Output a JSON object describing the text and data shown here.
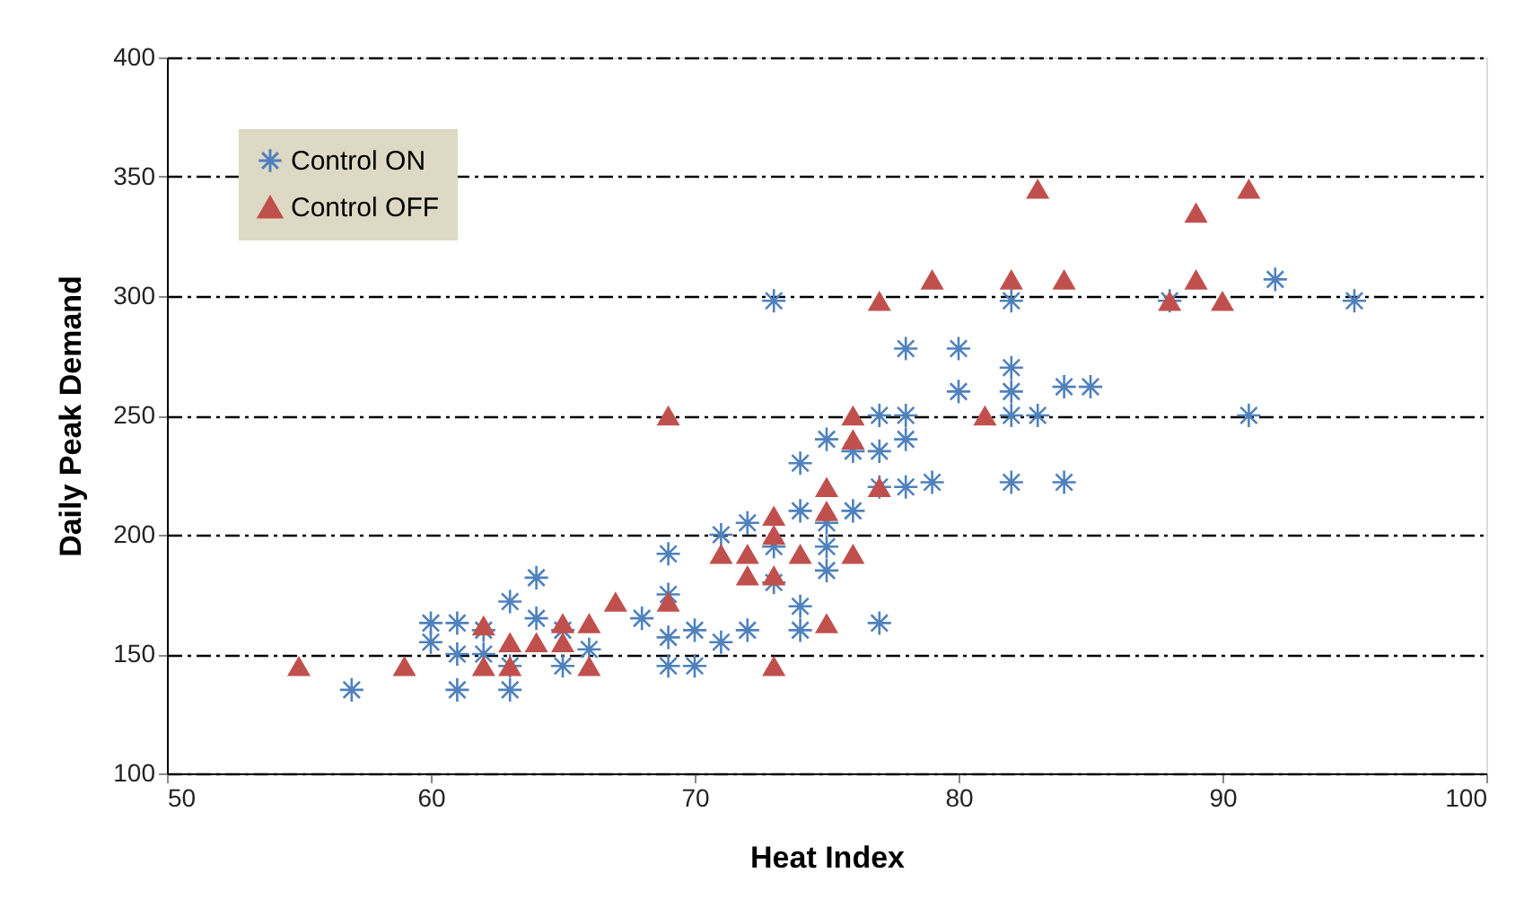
{
  "chart_data": {
    "type": "scatter",
    "xlabel": "Heat Index",
    "ylabel": "Daily Peak Demand",
    "xlim": [
      50,
      100
    ],
    "xticks": [
      50,
      60,
      70,
      80,
      90,
      100
    ],
    "ylim": [
      100,
      400
    ],
    "yticks": [
      100,
      150,
      200,
      250,
      300,
      350,
      400
    ],
    "grid": "y",
    "legend": "top left",
    "series": [
      {
        "name": "Control ON",
        "color": "#4f81bd",
        "marker": "cross",
        "x": [
          57,
          60,
          60,
          61,
          61,
          61,
          62,
          62,
          63,
          63,
          63,
          64,
          64,
          65,
          65,
          66,
          68,
          69,
          69,
          69,
          69,
          70,
          70,
          71,
          71,
          72,
          72,
          73,
          73,
          73,
          74,
          74,
          74,
          74,
          75,
          75,
          75,
          75,
          76,
          76,
          77,
          77,
          77,
          77,
          78,
          78,
          78,
          78,
          79,
          80,
          80,
          82,
          82,
          82,
          82,
          82,
          83,
          84,
          84,
          85,
          88,
          91,
          92,
          95
        ],
        "values": [
          135,
          163,
          155,
          163,
          150,
          135,
          160,
          150,
          172,
          145,
          135,
          182,
          165,
          145,
          160,
          152,
          165,
          192,
          175,
          157,
          145,
          160,
          145,
          200,
          155,
          205,
          160,
          298,
          195,
          180,
          230,
          210,
          170,
          160,
          240,
          205,
          195,
          185,
          235,
          210,
          250,
          235,
          220,
          163,
          278,
          250,
          240,
          220,
          222,
          278,
          260,
          270,
          260,
          250,
          298,
          222,
          250,
          262,
          222,
          262,
          298,
          250,
          307,
          298
        ]
      },
      {
        "name": "Control OFF",
        "color": "#c0504d",
        "marker": "triangle",
        "x": [
          55,
          59,
          62,
          62,
          63,
          63,
          64,
          65,
          65,
          66,
          66,
          67,
          69,
          69,
          71,
          72,
          72,
          73,
          73,
          73,
          73,
          74,
          75,
          75,
          75,
          76,
          76,
          76,
          77,
          77,
          79,
          81,
          82,
          83,
          84,
          88,
          89,
          89,
          90,
          91
        ],
        "values": [
          145,
          145,
          162,
          145,
          155,
          145,
          155,
          163,
          155,
          163,
          145,
          172,
          250,
          172,
          192,
          192,
          183,
          208,
          200,
          183,
          145,
          192,
          220,
          210,
          163,
          250,
          240,
          192,
          298,
          220,
          307,
          250,
          307,
          345,
          307,
          298,
          335,
          307,
          298,
          345
        ]
      }
    ]
  }
}
